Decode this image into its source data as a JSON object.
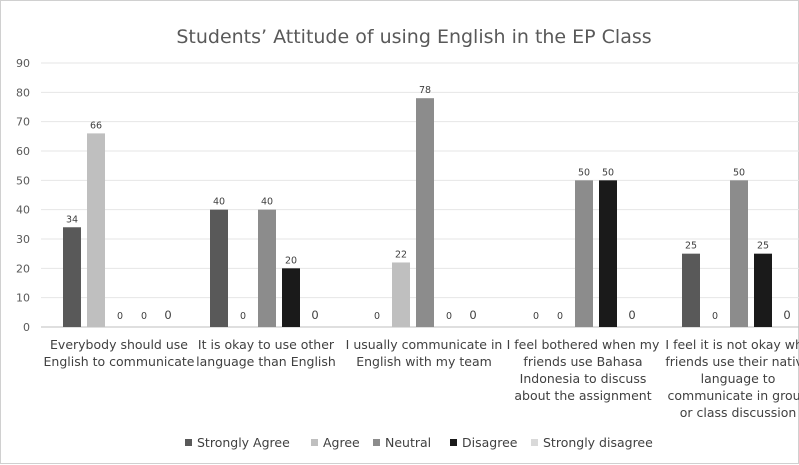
{
  "chart_data": {
    "type": "bar",
    "title": "Students’ Attitude of using English in the EP Class",
    "xlabel": "",
    "ylabel": "",
    "ylim": [
      0,
      90
    ],
    "yticks": [
      0,
      10,
      20,
      30,
      40,
      50,
      60,
      70,
      80,
      90
    ],
    "grid": true,
    "legend_position": "bottom",
    "categories": [
      [
        "Everybody should use",
        "English to communicate"
      ],
      [
        "It is okay to use other",
        "language than English"
      ],
      [
        "I usually communicate in",
        "English with my team"
      ],
      [
        "I feel bothered when my",
        "friends use Bahasa",
        "Indonesia to discuss",
        "about the assignment"
      ],
      [
        "I feel it is not okay whe",
        "friends use their native",
        "language to",
        "communicate in group",
        "or class discussion"
      ]
    ],
    "series": [
      {
        "name": "Strongly Agree",
        "color": "#595959",
        "values": [
          34,
          40,
          0,
          0,
          25
        ]
      },
      {
        "name": "Agree",
        "color": "#bfbfbf",
        "values": [
          66,
          0,
          22,
          0,
          0
        ]
      },
      {
        "name": "Neutral",
        "color": "#8c8c8c",
        "values": [
          0,
          40,
          78,
          50,
          50
        ]
      },
      {
        "name": "Disagree",
        "color": "#1a1a1a",
        "values": [
          0,
          20,
          0,
          50,
          25
        ]
      },
      {
        "name": "Strongly disagree",
        "color": "#d9d9d9",
        "values": [
          0,
          0,
          0,
          0,
          0
        ]
      }
    ]
  }
}
